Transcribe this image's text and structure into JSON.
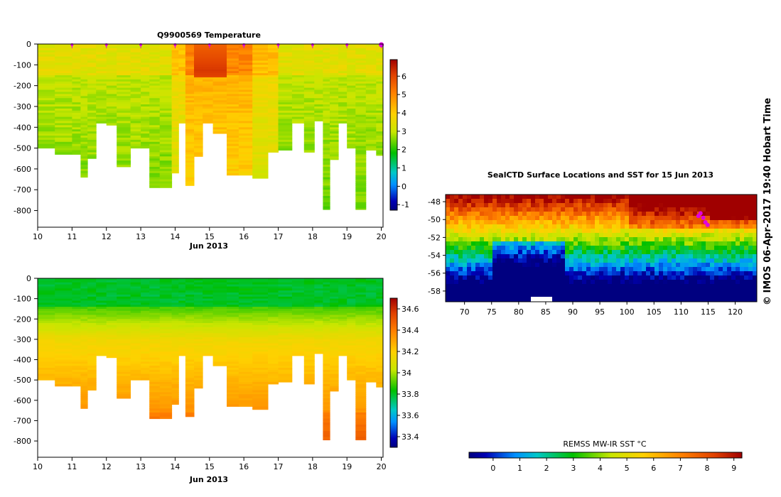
{
  "chart_data": [
    {
      "type": "heatmap",
      "title": "Q9900569  Temperature",
      "xlabel": "Jun 2013",
      "ylabel": "",
      "x_ticks": [
        "10",
        "11",
        "12",
        "13",
        "14",
        "15",
        "16",
        "17",
        "18",
        "19",
        "20"
      ],
      "xlim": [
        10,
        20.05
      ],
      "y_ticks": [
        "0",
        "-100",
        "-200",
        "-300",
        "-400",
        "-500",
        "-600",
        "-700",
        "-800"
      ],
      "ylim": [
        -880,
        0
      ],
      "colorbar_ticks": [
        "-1",
        "0",
        "1",
        "2",
        "3",
        "4",
        "5",
        "6"
      ],
      "colorbar_range": [
        -1.3,
        6.9
      ],
      "profile_days": [
        10.0,
        10.5,
        11.0,
        11.25,
        11.45,
        11.7,
        12.0,
        12.3,
        12.7,
        13.0,
        13.25,
        13.55,
        13.9,
        14.1,
        14.3,
        14.55,
        14.8,
        15.1,
        15.5,
        15.85,
        16.25,
        16.7,
        17.0,
        17.4,
        17.75,
        18.05,
        18.3,
        18.5,
        18.75,
        19.0,
        19.25,
        19.55,
        19.85,
        20.05
      ],
      "max_depths": [
        500,
        530,
        530,
        640,
        550,
        380,
        390,
        590,
        500,
        500,
        690,
        690,
        620,
        380,
        680,
        540,
        380,
        430,
        630,
        630,
        645,
        520,
        510,
        380,
        520,
        370,
        795,
        555,
        380,
        500,
        795,
        510,
        535,
        540
      ],
      "surface_markers": [
        11,
        12,
        13,
        14,
        15,
        16,
        17,
        18,
        19,
        20
      ],
      "warm_core": {
        "days": [
          14.5,
          15.2
        ],
        "max_temp": 6.6,
        "depth": 120
      }
    },
    {
      "type": "heatmap",
      "title": "",
      "xlabel": "Jun 2013",
      "ylabel": "",
      "x_ticks": [
        "10",
        "11",
        "12",
        "13",
        "14",
        "15",
        "16",
        "17",
        "18",
        "19",
        "20"
      ],
      "xlim": [
        10,
        20.05
      ],
      "y_ticks": [
        "0",
        "-100",
        "-200",
        "-300",
        "-400",
        "-500",
        "-600",
        "-700",
        "-800"
      ],
      "ylim": [
        -880,
        0
      ],
      "colorbar_ticks": [
        "33.4",
        "33.6",
        "33.8",
        "34",
        "34.2",
        "34.4",
        "34.6"
      ],
      "colorbar_range": [
        33.3,
        34.7
      ],
      "profile_days": [
        10.0,
        10.5,
        11.0,
        11.25,
        11.45,
        11.7,
        12.0,
        12.3,
        12.7,
        13.0,
        13.25,
        13.55,
        13.9,
        14.1,
        14.3,
        14.55,
        14.8,
        15.1,
        15.5,
        15.85,
        16.25,
        16.7,
        17.0,
        17.4,
        17.75,
        18.05,
        18.3,
        18.5,
        18.75,
        19.0,
        19.25,
        19.55,
        19.85,
        20.05
      ],
      "max_depths": [
        500,
        530,
        530,
        640,
        550,
        380,
        390,
        590,
        500,
        500,
        690,
        690,
        620,
        380,
        680,
        540,
        380,
        430,
        630,
        630,
        645,
        520,
        510,
        380,
        520,
        370,
        795,
        555,
        380,
        500,
        795,
        510,
        535,
        540
      ]
    },
    {
      "type": "heatmap",
      "title": "SealCTD Surface Locations and SST for 15 Jun 2013",
      "xlabel": "",
      "ylabel": "",
      "x_ticks": [
        "70",
        "75",
        "80",
        "85",
        "90",
        "95",
        "100",
        "105",
        "110",
        "115",
        "120"
      ],
      "xlim": [
        66.5,
        124
      ],
      "y_ticks": [
        "-48",
        "-50",
        "-52",
        "-54",
        "-56",
        "-58"
      ],
      "ylim": [
        -59.2,
        -47.2
      ],
      "colorbar_label": "REMSS MW-IR SST °C",
      "colorbar_ticks": [
        "0",
        "1",
        "2",
        "3",
        "4",
        "5",
        "6",
        "7",
        "8",
        "9"
      ],
      "colorbar_range": [
        -0.9,
        9.3
      ],
      "seal_locations": [
        [
          113.6,
          -49.3
        ],
        [
          114.1,
          -49.8
        ],
        [
          114.5,
          -50.3
        ],
        [
          114.9,
          -50.6
        ],
        [
          113.2,
          -49.6
        ]
      ]
    }
  ],
  "side_note": "© IMOS 06-Apr-2017 19:40 Hobart Time"
}
